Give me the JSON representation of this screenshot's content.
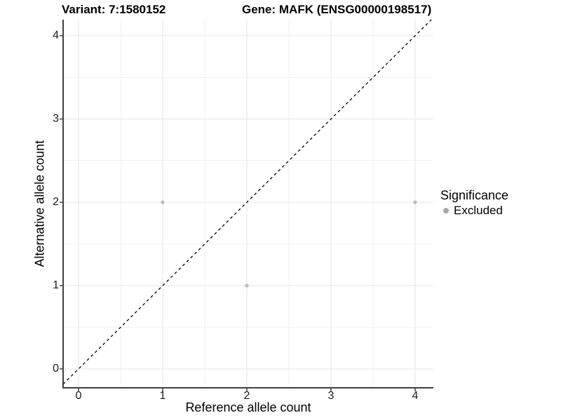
{
  "header": {
    "title_left": "Variant: 7:1580152",
    "title_right": "Gene: MAFK (ENSG00000198517)"
  },
  "chart_data": {
    "type": "scatter",
    "title_left": "Variant: 7:1580152",
    "title_right": "Gene: MAFK (ENSG00000198517)",
    "xlabel": "Reference allele count",
    "ylabel": "Alternative allele count",
    "xlim": [
      -0.2,
      4.2
    ],
    "ylim": [
      -0.2,
      4.2
    ],
    "x_ticks": [
      0,
      1,
      2,
      3,
      4
    ],
    "y_ticks": [
      0,
      1,
      2,
      3,
      4
    ],
    "grid": "major-and-minor",
    "series": [
      {
        "name": "Excluded",
        "points": [
          {
            "x": 1,
            "y": 2
          },
          {
            "x": 2,
            "y": 1
          },
          {
            "x": 4,
            "y": 2
          }
        ]
      }
    ],
    "reference_line": {
      "slope": 1,
      "intercept": 0,
      "linetype": "dashed",
      "color": "#000000"
    },
    "legend": {
      "position": "right",
      "title": "Significance",
      "entries": [
        {
          "label": "Excluded",
          "color": "#a8a8a8"
        }
      ]
    },
    "style": {
      "point_color": "#bdbdbd",
      "legend_dot_color": "#a8a8a8",
      "grid_major_color": "#e5e5e5",
      "grid_minor_color": "#f2f2f2",
      "axis_color": "#404040",
      "background": "#ffffff"
    }
  }
}
